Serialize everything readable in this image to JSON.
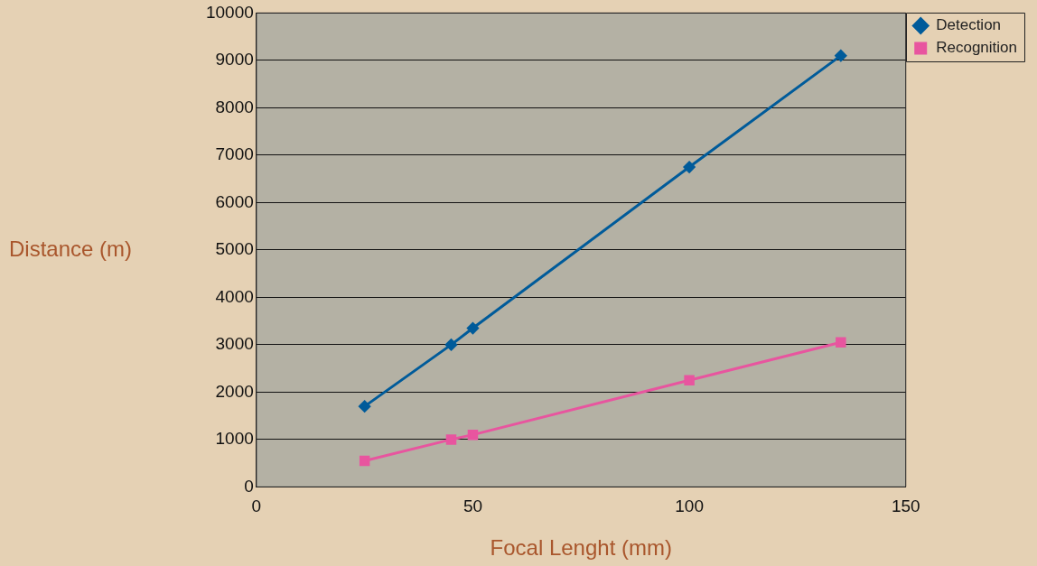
{
  "chart_data": {
    "type": "line",
    "xlabel": "Focal Lenght (mm)",
    "ylabel": "Distance (m)",
    "x": [
      25,
      45,
      50,
      100,
      135
    ],
    "series": [
      {
        "name": "Detection",
        "color": "#005b9a",
        "values": [
          1700,
          3000,
          3350,
          6750,
          9100
        ],
        "marker": "diamond"
      },
      {
        "name": "Recognition",
        "color": "#e8559f",
        "values": [
          550,
          1000,
          1100,
          2250,
          3050
        ],
        "marker": "square"
      }
    ],
    "xlim": [
      0,
      150
    ],
    "xticks": [
      0,
      50,
      100,
      150
    ],
    "ylim": [
      0,
      10000
    ],
    "yticks": [
      0,
      1000,
      2000,
      3000,
      4000,
      5000,
      6000,
      7000,
      8000,
      9000,
      10000
    ],
    "grid": "y",
    "legend": "top right",
    "line_style": "solid"
  }
}
